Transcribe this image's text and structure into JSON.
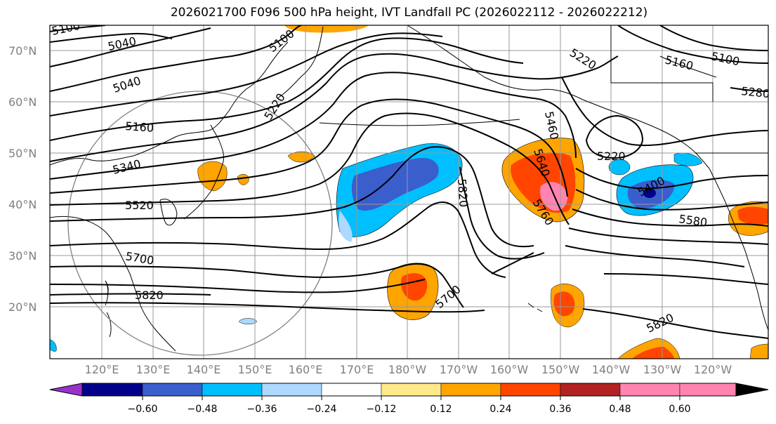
{
  "title": "2026021700 F096 500 hPa height, IVT Landfall PC (2026022112 - 2026022212)",
  "lat_labels": [
    "70°N",
    "60°N",
    "50°N",
    "40°N",
    "30°N",
    "20°N"
  ],
  "lon_labels": [
    "120°E",
    "130°E",
    "140°E",
    "150°E",
    "160°E",
    "170°E",
    "180°W",
    "170°W",
    "160°W",
    "150°W",
    "140°W",
    "130°W",
    "120°W"
  ],
  "contour_labels": [
    "5100",
    "5040",
    "5100",
    "5040",
    "5220",
    "5220",
    "5160",
    "5100",
    "5280",
    "5460",
    "5160",
    "5220",
    "5340",
    "5640",
    "5400",
    "5820",
    "5520",
    "5760",
    "5580",
    "5700",
    "5700",
    "5820",
    "5820"
  ],
  "colorbar": {
    "ticks": [
      "−0.60",
      "−0.48",
      "−0.36",
      "−0.24",
      "−0.12",
      "0.12",
      "0.24",
      "0.36",
      "0.48",
      "0.60"
    ],
    "colors": [
      "#9932cc",
      "#00008b",
      "#3a5fcd",
      "#00bfff",
      "#add8ff",
      "#ffffff",
      "#ffe88a",
      "#ffa500",
      "#ff4500",
      "#b22222",
      "#ff85b0",
      "#ff85b0"
    ]
  }
}
